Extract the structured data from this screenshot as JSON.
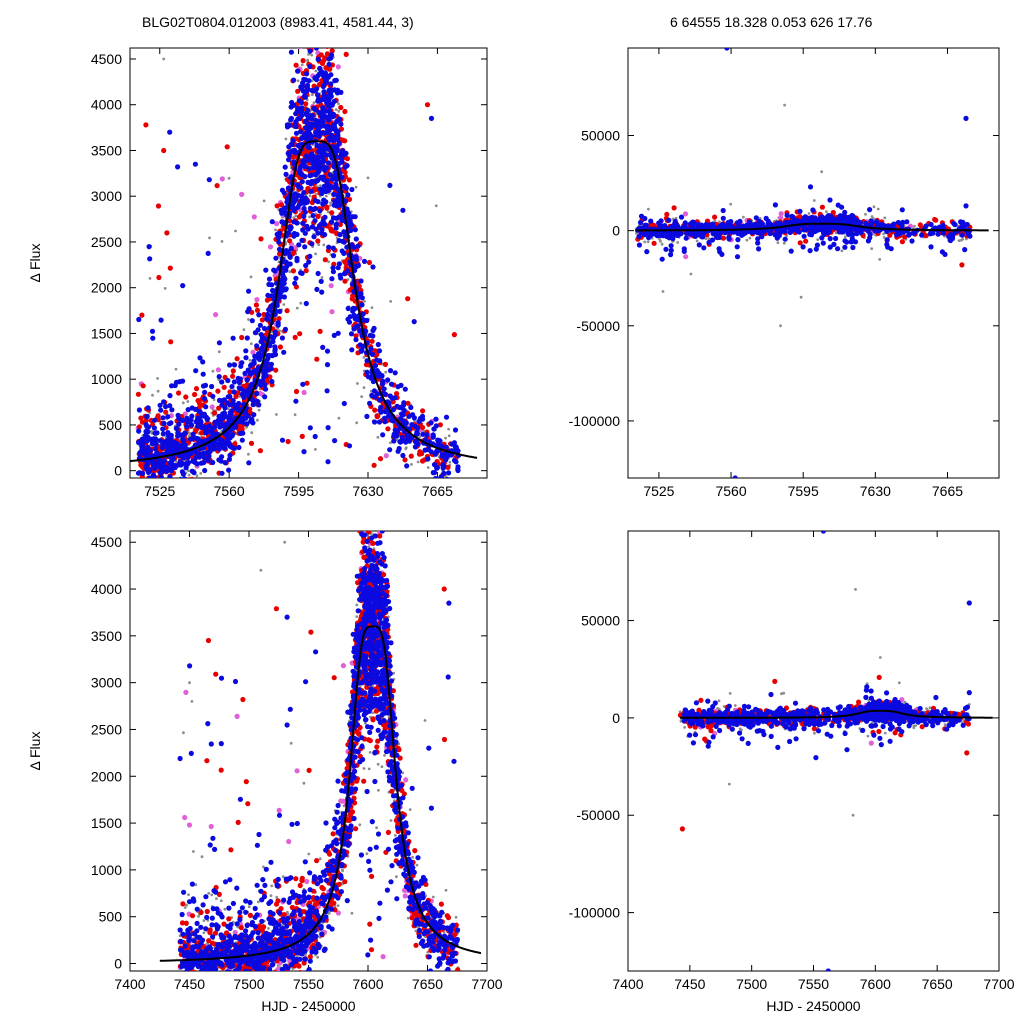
{
  "header": {
    "title": "BLG02T0804.012003 (8983.41, 4581.44,    3)",
    "stats": "6   64555   18.328   0.053   626   17.76"
  },
  "colors": {
    "red": "#e80000",
    "blue": "#0a0ae0",
    "violet": "#e060d8",
    "grey": "#8c8c8c",
    "model": "#000000"
  },
  "chart_data": [
    {
      "id": "top-left",
      "type": "scatter",
      "title": "",
      "xlabel": "",
      "ylabel": "Δ Flux",
      "xlim": [
        7510,
        7690
      ],
      "ylim": [
        -80,
        4620
      ],
      "xticks": [
        7525,
        7560,
        7595,
        7630,
        7665
      ],
      "yticks": [
        0,
        500,
        1000,
        1500,
        2000,
        2500,
        3000,
        3500,
        4000,
        4500
      ],
      "model": {
        "t0": 7604,
        "peak": 3600,
        "tau": 16
      },
      "series": [
        {
          "color": "red",
          "n": 950,
          "dots": [
            [
              7516,
              1700
            ],
            [
              7518,
              3780
            ],
            [
              7527,
              3500
            ],
            [
              7559,
              3540
            ],
            [
              7660,
              4000
            ],
            [
              7619,
              4550
            ],
            [
              7650,
              1880
            ]
          ]
        },
        {
          "color": "blue",
          "n": 1600,
          "dots": [
            [
              7530,
              3700
            ],
            [
              7534,
              3320
            ],
            [
              7543,
              3350
            ],
            [
              7550,
              3180
            ],
            [
              7604,
              4620
            ],
            [
              7662,
              3850
            ]
          ]
        },
        {
          "color": "violet",
          "n": 120,
          "dots": [
            [
              7574,
              1870
            ]
          ]
        },
        {
          "color": "grey",
          "n": 700,
          "dots": [
            [
              7527,
              4500
            ],
            [
              7600,
              4550
            ],
            [
              7624,
              3100
            ],
            [
              7630,
              3200
            ]
          ]
        }
      ]
    },
    {
      "id": "top-right",
      "type": "scatter",
      "title": "",
      "xlabel": "",
      "ylabel": "",
      "xlim": [
        7510,
        7690
      ],
      "ylim": [
        -130000,
        96000
      ],
      "xticks": [
        7525,
        7560,
        7595,
        7630,
        7665
      ],
      "yticks": [
        -100000,
        -50000,
        0,
        50000
      ],
      "model": {
        "t0": 7604,
        "peak": 3600,
        "tau": 16
      },
      "series": [
        {
          "color": "red",
          "n": 420,
          "dots": [
            [
              7672,
              -18000
            ]
          ]
        },
        {
          "color": "blue",
          "n": 800,
          "dots": [
            [
              7558,
              96000
            ],
            [
              7562,
              -130000
            ],
            [
              7674,
              59000
            ],
            [
              7674,
              13000
            ]
          ]
        },
        {
          "color": "violet",
          "n": 40,
          "dots": []
        },
        {
          "color": "grey",
          "n": 500,
          "dots": [
            [
              7586,
              66000
            ],
            [
              7584,
              -50000
            ],
            [
              7604,
              31000
            ],
            [
              7527,
              -32000
            ],
            [
              7594,
              -35000
            ]
          ]
        }
      ]
    },
    {
      "id": "bottom-left",
      "type": "scatter",
      "title": "",
      "xlabel": "HJD - 2450000",
      "ylabel": "Δ Flux",
      "xlim": [
        7400,
        7700
      ],
      "ylim": [
        -80,
        4620
      ],
      "xticks": [
        7400,
        7450,
        7500,
        7550,
        7600,
        7650,
        7700
      ],
      "yticks": [
        0,
        500,
        1000,
        1500,
        2000,
        2500,
        3000,
        3500,
        4000,
        4500
      ],
      "model": {
        "t0": 7604,
        "peak": 3600,
        "tau": 16
      },
      "series": [
        {
          "color": "red",
          "n": 1000,
          "dots": [
            [
              7466,
              3450
            ],
            [
              7472,
              3090
            ],
            [
              7523,
              3790
            ],
            [
              7552,
              3540
            ],
            [
              7593,
              4620
            ],
            [
              7664,
              4000
            ]
          ]
        },
        {
          "color": "blue",
          "n": 1700,
          "dots": [
            [
              7532,
              3700
            ],
            [
              7556,
              3330
            ],
            [
              7612,
              4620
            ],
            [
              7668,
              3850
            ]
          ]
        },
        {
          "color": "violet",
          "n": 200,
          "dots": [
            [
              7446,
              1560
            ],
            [
              7450,
              1480
            ],
            [
              7490,
              2640
            ]
          ]
        },
        {
          "color": "grey",
          "n": 800,
          "dots": [
            [
              7450,
              3000
            ],
            [
              7452,
              2800
            ],
            [
              7530,
              4500
            ],
            [
              7510,
              4200
            ]
          ]
        }
      ]
    },
    {
      "id": "bottom-right",
      "type": "scatter",
      "title": "",
      "xlabel": "HJD - 2450000",
      "ylabel": "",
      "xlim": [
        7400,
        7700
      ],
      "ylim": [
        -130000,
        96000
      ],
      "xticks": [
        7400,
        7450,
        7500,
        7550,
        7600,
        7650,
        7700
      ],
      "yticks": [
        -100000,
        -50000,
        0,
        50000
      ],
      "model": {
        "t0": 7604,
        "peak": 3600,
        "tau": 16
      },
      "series": [
        {
          "color": "red",
          "n": 420,
          "dots": [
            [
              7444,
              -57000
            ],
            [
              7674,
              -18000
            ]
          ]
        },
        {
          "color": "blue",
          "n": 800,
          "dots": [
            [
              7558,
              96000
            ],
            [
              7562,
              -130000
            ],
            [
              7676,
              59000
            ],
            [
              7676,
              13000
            ]
          ]
        },
        {
          "color": "violet",
          "n": 40,
          "dots": [
            [
              7470,
              -8000
            ]
          ]
        },
        {
          "color": "grey",
          "n": 500,
          "dots": [
            [
              7584,
              66000
            ],
            [
              7582,
              -50000
            ],
            [
              7604,
              31000
            ],
            [
              7482,
              -34000
            ]
          ]
        }
      ]
    }
  ]
}
